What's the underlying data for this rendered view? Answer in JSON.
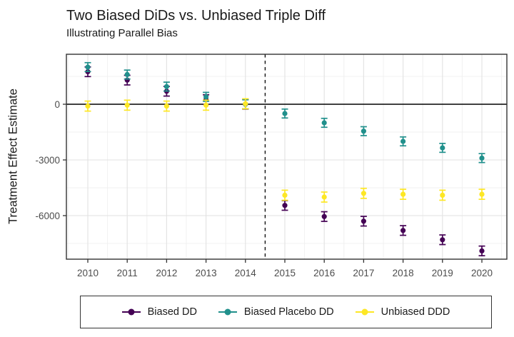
{
  "chart_data": {
    "type": "scatter",
    "title": "Two Biased DiDs vs. Unbiased Triple Diff",
    "subtitle": "Illustrating Parallel Bias",
    "xlabel": "",
    "ylabel": "Treatment Effect Estimate",
    "x": [
      2010,
      2011,
      2012,
      2013,
      2014,
      2015,
      2016,
      2017,
      2018,
      2019,
      2020
    ],
    "series": [
      {
        "name": "Biased DD",
        "color": "#440154",
        "se": 260,
        "values": [
          1750,
          1300,
          700,
          250,
          0,
          -5450,
          -6050,
          -6300,
          -6800,
          -7300,
          -7900
        ]
      },
      {
        "name": "Biased Placebo DD",
        "color": "#21908C",
        "se": 240,
        "values": [
          2000,
          1600,
          950,
          400,
          0,
          -500,
          -1000,
          -1450,
          -2000,
          -2350,
          -2900
        ]
      },
      {
        "name": "Unbiased DDD",
        "color": "#FDE725",
        "se": 270,
        "values": [
          -100,
          -50,
          -100,
          -50,
          25,
          -4900,
          -5000,
          -4800,
          -4850,
          -4900,
          -4850
        ]
      }
    ],
    "yticks": [
      0,
      -3000,
      -6000
    ],
    "yticks_minor": [
      1500,
      -1500,
      -4500,
      -7500
    ],
    "ylim": [
      -8350,
      2700
    ],
    "xlim": [
      2009.45,
      2020.65
    ],
    "reference_lines": {
      "hline_y": 0,
      "vline_x": 2014.5,
      "vline_style": "dashed"
    },
    "grid": true,
    "legend_position": "bottom",
    "panel_border": true,
    "colors": {
      "axis_text": "#4D4D4D",
      "grid_major": "#E2E2E2",
      "grid_minor": "#F0F0F0",
      "border": "#333333",
      "reference": "#000000",
      "text": "#1A1A1A"
    }
  }
}
